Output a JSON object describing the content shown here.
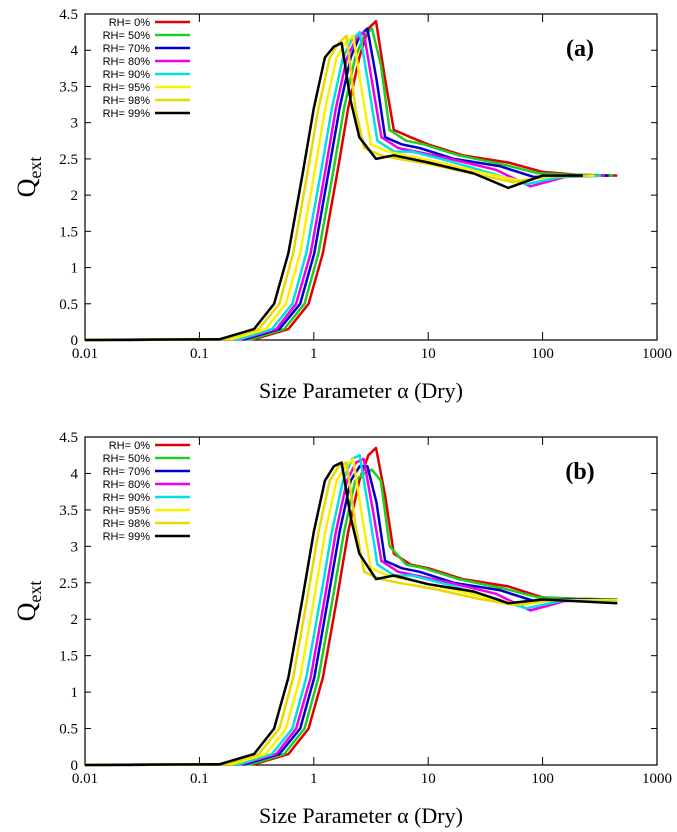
{
  "chart_data": [
    {
      "type": "line",
      "title": "(a)",
      "xlabel": "Size Parameter α (Dry)",
      "ylabel": "Q",
      "ylabel_subscript": "ext",
      "xscale": "log",
      "xlim": [
        0.01,
        1000
      ],
      "ylim": [
        0,
        4.5
      ],
      "xticks": [
        0.01,
        0.1,
        1,
        10,
        100,
        1000
      ],
      "yticks": [
        0,
        0.5,
        1,
        1.5,
        2,
        2.5,
        3,
        3.5,
        4,
        4.5
      ],
      "legend": "upper left",
      "series": [
        {
          "name": "RH= 0%",
          "color": "#e00000",
          "x": [
            0.01,
            0.3,
            0.6,
            0.9,
            1.2,
            1.6,
            2.0,
            2.5,
            3.0,
            3.5,
            4.2,
            5,
            7,
            10,
            20,
            50,
            100,
            200,
            450
          ],
          "values": [
            0,
            0.01,
            0.15,
            0.5,
            1.2,
            2.3,
            3.2,
            3.9,
            4.3,
            4.4,
            3.6,
            2.9,
            2.8,
            2.7,
            2.55,
            2.45,
            2.32,
            2.28,
            2.27
          ]
        },
        {
          "name": "RH= 50%",
          "color": "#22cc22",
          "x": [
            0.01,
            0.28,
            0.55,
            0.83,
            1.1,
            1.47,
            1.84,
            2.3,
            2.76,
            3.22,
            3.86,
            4.6,
            6.44,
            9.2,
            18.4,
            46,
            92,
            184,
            414
          ],
          "values": [
            0,
            0.01,
            0.15,
            0.5,
            1.2,
            2.3,
            3.2,
            3.9,
            4.2,
            4.3,
            3.8,
            2.9,
            2.75,
            2.7,
            2.55,
            2.42,
            2.3,
            2.28,
            2.27
          ]
        },
        {
          "name": "RH= 70%",
          "color": "#0000cc",
          "x": [
            0.01,
            0.25,
            0.5,
            0.76,
            1.01,
            1.34,
            1.68,
            2.1,
            2.52,
            2.94,
            3.53,
            4.2,
            5.88,
            8.4,
            16.8,
            42,
            84,
            168,
            378
          ],
          "values": [
            0,
            0.01,
            0.15,
            0.5,
            1.2,
            2.3,
            3.2,
            3.9,
            4.2,
            4.3,
            3.6,
            2.8,
            2.7,
            2.65,
            2.5,
            2.4,
            2.25,
            2.27,
            2.27
          ]
        },
        {
          "name": "RH= 80%",
          "color": "#ee00ee",
          "x": [
            0.01,
            0.23,
            0.47,
            0.7,
            0.94,
            1.25,
            1.56,
            1.95,
            2.34,
            2.73,
            3.28,
            3.9,
            5.46,
            7.8,
            15.6,
            39,
            78,
            156,
            351
          ],
          "values": [
            0,
            0.01,
            0.15,
            0.5,
            1.2,
            2.3,
            3.2,
            3.9,
            4.15,
            4.25,
            3.5,
            2.8,
            2.65,
            2.6,
            2.5,
            2.35,
            2.12,
            2.25,
            2.27
          ]
        },
        {
          "name": "RH= 90%",
          "color": "#00e0e0",
          "x": [
            0.01,
            0.22,
            0.43,
            0.65,
            0.86,
            1.15,
            1.44,
            1.8,
            2.16,
            2.52,
            3.02,
            3.6,
            5.04,
            7.2,
            14.4,
            36,
            72,
            144,
            324
          ],
          "values": [
            0,
            0.01,
            0.15,
            0.5,
            1.2,
            2.3,
            3.2,
            3.9,
            4.15,
            4.25,
            3.5,
            2.75,
            2.6,
            2.6,
            2.48,
            2.3,
            2.15,
            2.25,
            2.27
          ]
        },
        {
          "name": "RH= 95%",
          "color": "#fff000",
          "x": [
            0.01,
            0.19,
            0.38,
            0.57,
            0.76,
            1.01,
            1.26,
            1.58,
            1.89,
            2.21,
            2.65,
            3.15,
            4.41,
            6.3,
            12.6,
            31.5,
            63,
            126,
            284
          ],
          "values": [
            0,
            0.01,
            0.15,
            0.5,
            1.2,
            2.3,
            3.2,
            3.9,
            4.1,
            4.2,
            3.4,
            2.7,
            2.6,
            2.55,
            2.45,
            2.3,
            2.2,
            2.26,
            2.27
          ]
        },
        {
          "name": "RH= 98%",
          "color": "#e8d800",
          "x": [
            0.01,
            0.17,
            0.33,
            0.5,
            0.66,
            0.88,
            1.1,
            1.38,
            1.65,
            1.93,
            2.31,
            2.75,
            3.85,
            5.5,
            11,
            27.5,
            55,
            110,
            248
          ],
          "values": [
            0,
            0.01,
            0.15,
            0.5,
            1.2,
            2.3,
            3.2,
            3.9,
            4.1,
            4.2,
            3.2,
            2.65,
            2.55,
            2.5,
            2.42,
            2.28,
            2.18,
            2.26,
            2.27
          ]
        },
        {
          "name": "RH= 99%",
          "color": "#000000",
          "x": [
            0.01,
            0.15,
            0.3,
            0.45,
            0.6,
            0.8,
            1.0,
            1.25,
            1.5,
            1.75,
            2.1,
            2.5,
            3.5,
            5,
            10,
            25,
            50,
            100,
            225
          ],
          "values": [
            0,
            0.01,
            0.15,
            0.5,
            1.2,
            2.3,
            3.2,
            3.9,
            4.05,
            4.1,
            3.3,
            2.8,
            2.5,
            2.55,
            2.45,
            2.3,
            2.1,
            2.27,
            2.27
          ]
        }
      ]
    },
    {
      "type": "line",
      "title": "(b)",
      "xlabel": "Size Parameter α (Dry)",
      "ylabel": "Q",
      "ylabel_subscript": "ext",
      "xscale": "log",
      "xlim": [
        0.01,
        1000
      ],
      "ylim": [
        0,
        4.5
      ],
      "xticks": [
        0.01,
        0.1,
        1,
        10,
        100,
        1000
      ],
      "yticks": [
        0,
        0.5,
        1,
        1.5,
        2,
        2.5,
        3,
        3.5,
        4,
        4.5
      ],
      "legend": "upper left",
      "series": [
        {
          "name": "RH= 0%",
          "color": "#e00000",
          "x": [
            0.01,
            0.3,
            0.6,
            0.9,
            1.2,
            1.6,
            2.0,
            2.5,
            3.0,
            3.5,
            4.2,
            5,
            7,
            10,
            20,
            50,
            100,
            200,
            450
          ],
          "values": [
            0,
            0.01,
            0.15,
            0.5,
            1.2,
            2.3,
            3.2,
            3.9,
            4.25,
            4.35,
            3.7,
            2.9,
            2.75,
            2.7,
            2.55,
            2.45,
            2.3,
            2.28,
            2.27
          ]
        },
        {
          "name": "RH= 50%",
          "color": "#22cc22",
          "x": [
            0.01,
            0.28,
            0.55,
            0.83,
            1.1,
            1.47,
            1.84,
            2.3,
            2.76,
            3.22,
            3.86,
            4.6,
            6.44,
            9.2,
            18.4,
            46,
            92,
            184,
            450
          ],
          "values": [
            0,
            0.01,
            0.15,
            0.5,
            1.2,
            2.3,
            3.2,
            3.9,
            4.0,
            4.05,
            3.9,
            3.0,
            2.75,
            2.7,
            2.55,
            2.42,
            2.3,
            2.28,
            2.27
          ]
        },
        {
          "name": "RH= 70%",
          "color": "#0000cc",
          "x": [
            0.01,
            0.25,
            0.5,
            0.76,
            1.01,
            1.34,
            1.68,
            2.1,
            2.52,
            2.94,
            3.53,
            4.2,
            5.88,
            8.4,
            16.8,
            42,
            84,
            168,
            450
          ],
          "values": [
            0,
            0.01,
            0.15,
            0.5,
            1.2,
            2.3,
            3.2,
            3.9,
            4.1,
            4.1,
            3.6,
            2.8,
            2.7,
            2.65,
            2.5,
            2.4,
            2.25,
            2.27,
            2.27
          ]
        },
        {
          "name": "RH= 80%",
          "color": "#ee00ee",
          "x": [
            0.01,
            0.23,
            0.47,
            0.7,
            0.94,
            1.25,
            1.56,
            1.95,
            2.34,
            2.73,
            3.28,
            3.9,
            5.46,
            7.8,
            15.6,
            39,
            78,
            156,
            450
          ],
          "values": [
            0,
            0.01,
            0.15,
            0.5,
            1.2,
            2.3,
            3.2,
            3.9,
            4.15,
            4.2,
            3.5,
            2.8,
            2.65,
            2.6,
            2.5,
            2.35,
            2.12,
            2.25,
            2.27
          ]
        },
        {
          "name": "RH= 90%",
          "color": "#00e0e0",
          "x": [
            0.01,
            0.22,
            0.43,
            0.65,
            0.86,
            1.15,
            1.44,
            1.8,
            2.16,
            2.52,
            3.02,
            3.6,
            5.04,
            7.2,
            14.4,
            36,
            72,
            144,
            450
          ],
          "values": [
            0,
            0.01,
            0.15,
            0.5,
            1.2,
            2.3,
            3.2,
            3.9,
            4.2,
            4.25,
            3.5,
            2.75,
            2.6,
            2.6,
            2.48,
            2.3,
            2.15,
            2.25,
            2.27
          ]
        },
        {
          "name": "RH= 95%",
          "color": "#fff000",
          "x": [
            0.01,
            0.19,
            0.38,
            0.57,
            0.76,
            1.01,
            1.26,
            1.58,
            1.89,
            2.21,
            2.65,
            3.15,
            4.41,
            6.3,
            12.6,
            31.5,
            63,
            126,
            450
          ],
          "values": [
            0,
            0.01,
            0.15,
            0.5,
            1.2,
            2.3,
            3.2,
            3.9,
            4.1,
            4.2,
            3.4,
            2.7,
            2.6,
            2.55,
            2.45,
            2.3,
            2.2,
            2.26,
            2.26
          ]
        },
        {
          "name": "RH= 98%",
          "color": "#e8d800",
          "x": [
            0.01,
            0.17,
            0.33,
            0.5,
            0.66,
            0.88,
            1.1,
            1.38,
            1.65,
            1.93,
            2.31,
            2.75,
            3.85,
            5.5,
            11,
            27.5,
            55,
            110,
            450
          ],
          "values": [
            0,
            0.01,
            0.15,
            0.5,
            1.2,
            2.3,
            3.2,
            3.9,
            4.1,
            4.15,
            3.3,
            2.65,
            2.55,
            2.5,
            2.42,
            2.28,
            2.2,
            2.26,
            2.25
          ]
        },
        {
          "name": "RH= 99%",
          "color": "#000000",
          "x": [
            0.01,
            0.15,
            0.3,
            0.45,
            0.6,
            0.8,
            1.0,
            1.25,
            1.5,
            1.75,
            2.1,
            2.5,
            3.5,
            5,
            10,
            25,
            50,
            100,
            450
          ],
          "values": [
            0,
            0.01,
            0.15,
            0.5,
            1.2,
            2.3,
            3.2,
            3.9,
            4.1,
            4.15,
            3.4,
            2.9,
            2.55,
            2.6,
            2.48,
            2.38,
            2.22,
            2.27,
            2.22
          ]
        }
      ]
    }
  ]
}
